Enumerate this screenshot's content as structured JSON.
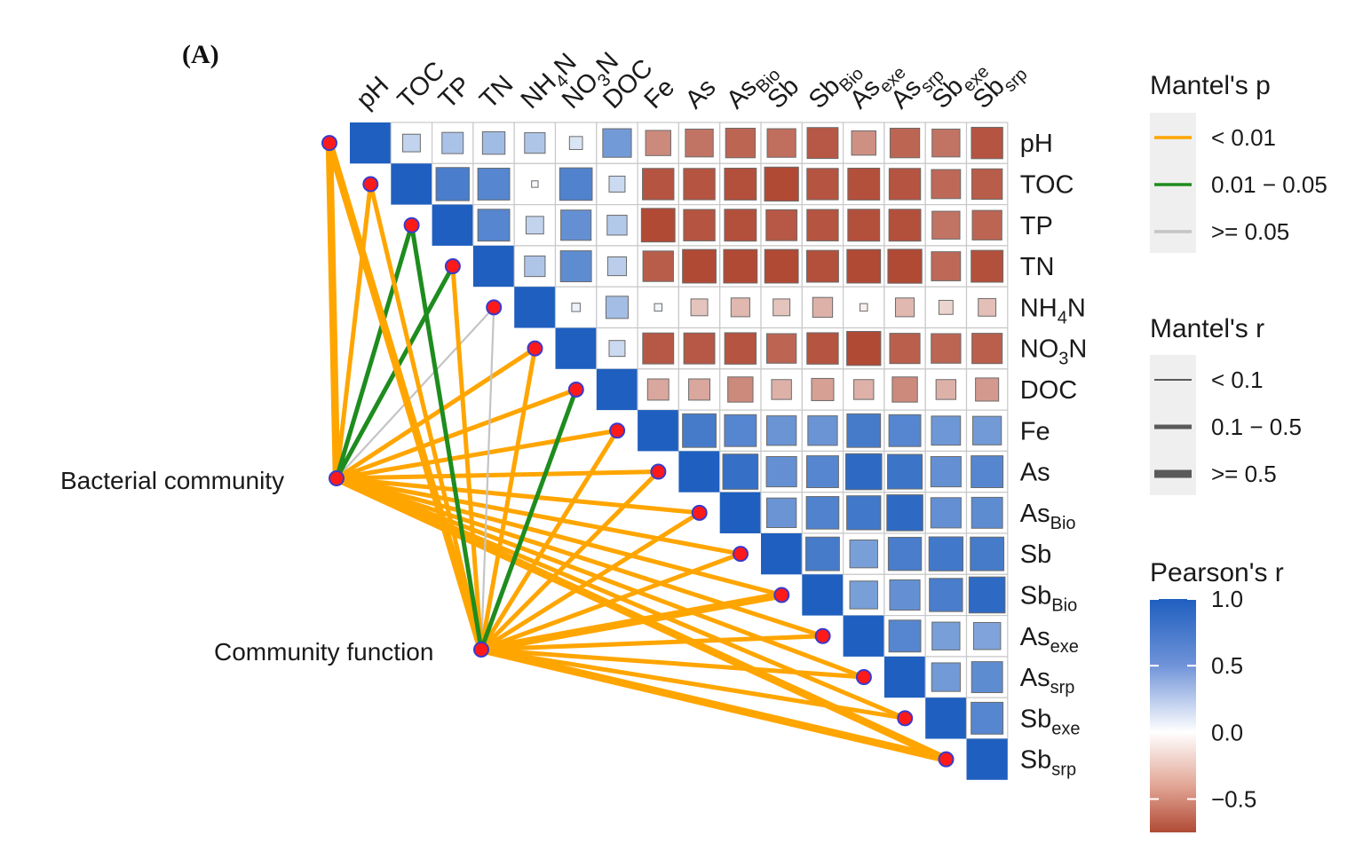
{
  "panel_label": "(A)",
  "chart_data": {
    "type": "heatmap",
    "variables": [
      {
        "id": "pH",
        "main": "pH",
        "sub": "",
        "subtype": ""
      },
      {
        "id": "TOC",
        "main": "TOC",
        "sub": "",
        "subtype": ""
      },
      {
        "id": "TP",
        "main": "TP",
        "sub": "",
        "subtype": ""
      },
      {
        "id": "TN",
        "main": "TN",
        "sub": "",
        "subtype": ""
      },
      {
        "id": "NH4N",
        "main": "NH",
        "sub": "4",
        "suffix": "N",
        "subtype": "num"
      },
      {
        "id": "NO3N",
        "main": "NO",
        "sub": "3",
        "suffix": "N",
        "subtype": "num"
      },
      {
        "id": "DOC",
        "main": "DOC",
        "sub": "",
        "subtype": ""
      },
      {
        "id": "Fe",
        "main": "Fe",
        "sub": "",
        "subtype": ""
      },
      {
        "id": "As",
        "main": "As",
        "sub": "",
        "subtype": ""
      },
      {
        "id": "AsBio",
        "main": "As",
        "sub": "Bio",
        "subtype": "txt"
      },
      {
        "id": "Sb",
        "main": "Sb",
        "sub": "",
        "subtype": ""
      },
      {
        "id": "SbBio",
        "main": "Sb",
        "sub": "Bio",
        "subtype": "txt"
      },
      {
        "id": "Asexe",
        "main": "As",
        "sub": "exe",
        "subtype": "txt"
      },
      {
        "id": "Assrp",
        "main": "As",
        "sub": "srp",
        "subtype": "txt"
      },
      {
        "id": "Sbexe",
        "main": "Sb",
        "sub": "exe",
        "subtype": "txt"
      },
      {
        "id": "Sbsrp",
        "main": "Sb",
        "sub": "srp",
        "subtype": "txt"
      }
    ],
    "pearson_r_upper_rows": [
      [
        0.22,
        0.32,
        0.36,
        0.3,
        0.12,
        0.58,
        -0.45,
        -0.55,
        -0.62,
        -0.58,
        -0.68,
        -0.42,
        -0.62,
        -0.55,
        -0.7
      ],
      [
        0.78,
        0.72,
        0.03,
        0.75,
        0.18,
        -0.7,
        -0.7,
        -0.72,
        -0.82,
        -0.7,
        -0.72,
        -0.7,
        -0.6,
        -0.66
      ],
      [
        0.72,
        0.22,
        0.65,
        0.28,
        -0.8,
        -0.7,
        -0.72,
        -0.68,
        -0.7,
        -0.72,
        -0.72,
        -0.55,
        -0.62
      ],
      [
        0.3,
        0.68,
        0.25,
        -0.66,
        -0.8,
        -0.8,
        -0.8,
        -0.72,
        -0.8,
        -0.82,
        -0.6,
        -0.72
      ],
      [
        0.05,
        0.35,
        0.04,
        -0.2,
        -0.25,
        -0.2,
        -0.28,
        -0.04,
        -0.25,
        -0.14,
        -0.22
      ],
      [
        0.18,
        -0.68,
        -0.68,
        -0.7,
        -0.62,
        -0.7,
        -0.82,
        -0.65,
        -0.62,
        -0.65
      ],
      [
        -0.32,
        -0.32,
        -0.45,
        -0.28,
        -0.35,
        -0.28,
        -0.45,
        -0.28,
        -0.38
      ],
      [
        0.8,
        0.72,
        0.62,
        0.62,
        0.8,
        0.72,
        0.6,
        0.58
      ],
      [
        0.88,
        0.65,
        0.72,
        0.92,
        0.85,
        0.65,
        0.72
      ],
      [
        0.62,
        0.75,
        0.82,
        0.92,
        0.65,
        0.68
      ],
      [
        0.8,
        0.55,
        0.78,
        0.82,
        0.8
      ],
      [
        0.55,
        0.65,
        0.78,
        0.92
      ],
      [
        0.72,
        0.55,
        0.52
      ],
      [
        0.58,
        0.68
      ],
      [
        0.72
      ],
      []
    ],
    "mantel_links": {
      "Bacterial community": [
        {
          "to": "pH",
          "p": "< 0.01",
          "r": ">= 0.5"
        },
        {
          "to": "TOC",
          "p": "< 0.01",
          "r": "0.1 - 0.5"
        },
        {
          "to": "TP",
          "p": "0.01 - 0.05",
          "r": "0.1 - 0.5"
        },
        {
          "to": "TN",
          "p": "0.01 - 0.05",
          "r": "0.1 - 0.5"
        },
        {
          "to": "NH4N",
          "p": ">= 0.05",
          "r": "< 0.1"
        },
        {
          "to": "NO3N",
          "p": "< 0.01",
          "r": "0.1 - 0.5"
        },
        {
          "to": "DOC",
          "p": "< 0.01",
          "r": "0.1 - 0.5"
        },
        {
          "to": "Fe",
          "p": "< 0.01",
          "r": "0.1 - 0.5"
        },
        {
          "to": "As",
          "p": "< 0.01",
          "r": "0.1 - 0.5"
        },
        {
          "to": "AsBio",
          "p": "< 0.01",
          "r": "0.1 - 0.5"
        },
        {
          "to": "Sb",
          "p": "< 0.01",
          "r": "0.1 - 0.5"
        },
        {
          "to": "SbBio",
          "p": "< 0.01",
          "r": "0.1 - 0.5"
        },
        {
          "to": "Asexe",
          "p": "< 0.01",
          "r": "0.1 - 0.5"
        },
        {
          "to": "Assrp",
          "p": "< 0.01",
          "r": "0.1 - 0.5"
        },
        {
          "to": "Sbexe",
          "p": "< 0.01",
          "r": "0.1 - 0.5"
        },
        {
          "to": "Sbsrp",
          "p": "< 0.01",
          "r": ">= 0.5"
        }
      ],
      "Community function": [
        {
          "to": "pH",
          "p": "< 0.01",
          "r": ">= 0.5"
        },
        {
          "to": "TOC",
          "p": "< 0.01",
          "r": "0.1 - 0.5"
        },
        {
          "to": "TP",
          "p": "0.01 - 0.05",
          "r": "0.1 - 0.5"
        },
        {
          "to": "TN",
          "p": "< 0.01",
          "r": "0.1 - 0.5"
        },
        {
          "to": "NH4N",
          "p": ">= 0.05",
          "r": "< 0.1"
        },
        {
          "to": "NO3N",
          "p": "< 0.01",
          "r": "0.1 - 0.5"
        },
        {
          "to": "DOC",
          "p": "0.01 - 0.05",
          "r": "0.1 - 0.5"
        },
        {
          "to": "Fe",
          "p": "< 0.01",
          "r": "0.1 - 0.5"
        },
        {
          "to": "As",
          "p": "< 0.01",
          "r": "0.1 - 0.5"
        },
        {
          "to": "AsBio",
          "p": "< 0.01",
          "r": "0.1 - 0.5"
        },
        {
          "to": "Sb",
          "p": "< 0.01",
          "r": "0.1 - 0.5"
        },
        {
          "to": "SbBio",
          "p": "< 0.01",
          "r": ">= 0.5"
        },
        {
          "to": "Asexe",
          "p": "< 0.01",
          "r": "0.1 - 0.5"
        },
        {
          "to": "Assrp",
          "p": "< 0.01",
          "r": "0.1 - 0.5"
        },
        {
          "to": "Sbexe",
          "p": "< 0.01",
          "r": "0.1 - 0.5"
        },
        {
          "to": "Sbsrp",
          "p": "< 0.01",
          "r": ">= 0.5"
        }
      ]
    },
    "community_nodes": [
      "Bacterial community",
      "Community function"
    ],
    "legend": {
      "mantel_p": {
        "title": "Mantel's p",
        "items": [
          {
            "label": "< 0.01",
            "color": "#FFA500"
          },
          {
            "label": "0.01 − 0.05",
            "color": "#1E8C1E"
          },
          {
            "label": ">= 0.05",
            "color": "#C4C4C4"
          }
        ]
      },
      "mantel_r": {
        "title": "Mantel's r",
        "items": [
          {
            "label": "< 0.1",
            "width_level": 1
          },
          {
            "label": "0.1 − 0.5",
            "width_level": 2
          },
          {
            "label": ">= 0.5",
            "width_level": 3
          }
        ]
      },
      "pearson_r": {
        "title": "Pearson's r",
        "ticks": [
          {
            "value": 1.0,
            "label": "1.0"
          },
          {
            "value": 0.5,
            "label": "0.5"
          },
          {
            "value": 0.0,
            "label": "0.0"
          },
          {
            "value": -0.5,
            "label": "−0.5"
          }
        ],
        "range": [
          -0.75,
          1.0
        ],
        "colors": {
          "positive": "#1F5FBF",
          "zero": "#FFFFFF",
          "negative": "#B04A35"
        }
      }
    }
  }
}
